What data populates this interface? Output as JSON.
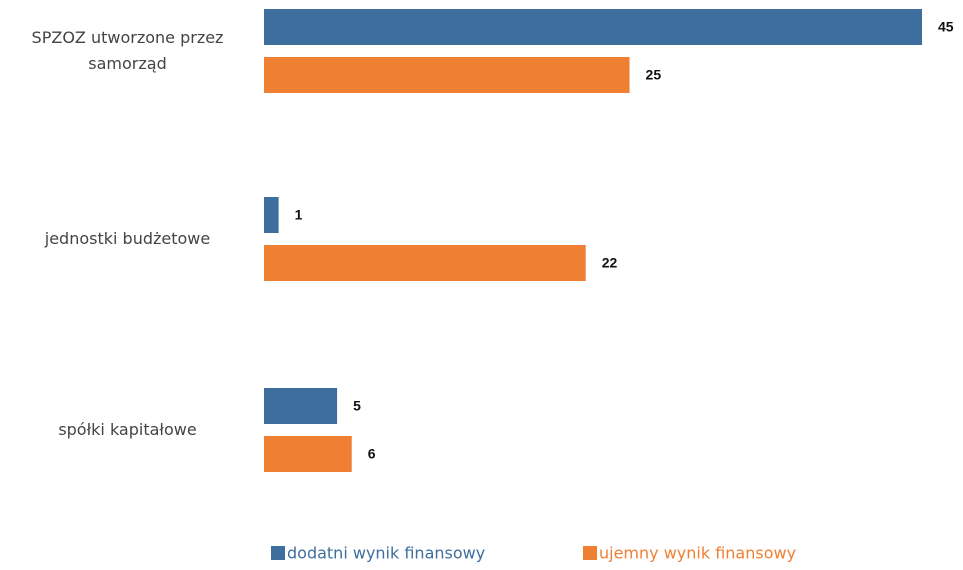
{
  "chart_data": {
    "type": "hbar",
    "categories": [
      "SPZOZ utworzone przez samorząd",
      "jednostki budżetowe",
      "spółki kapitałowe"
    ],
    "series": [
      {
        "name": "dodatni wynik finansowy",
        "color": "#3e6e9e",
        "values": [
          45,
          1,
          5
        ]
      },
      {
        "name": "ujemny wynik finansowy",
        "color": "#ef7f33",
        "values": [
          25,
          22,
          6
        ]
      }
    ],
    "legend": "bottom"
  }
}
